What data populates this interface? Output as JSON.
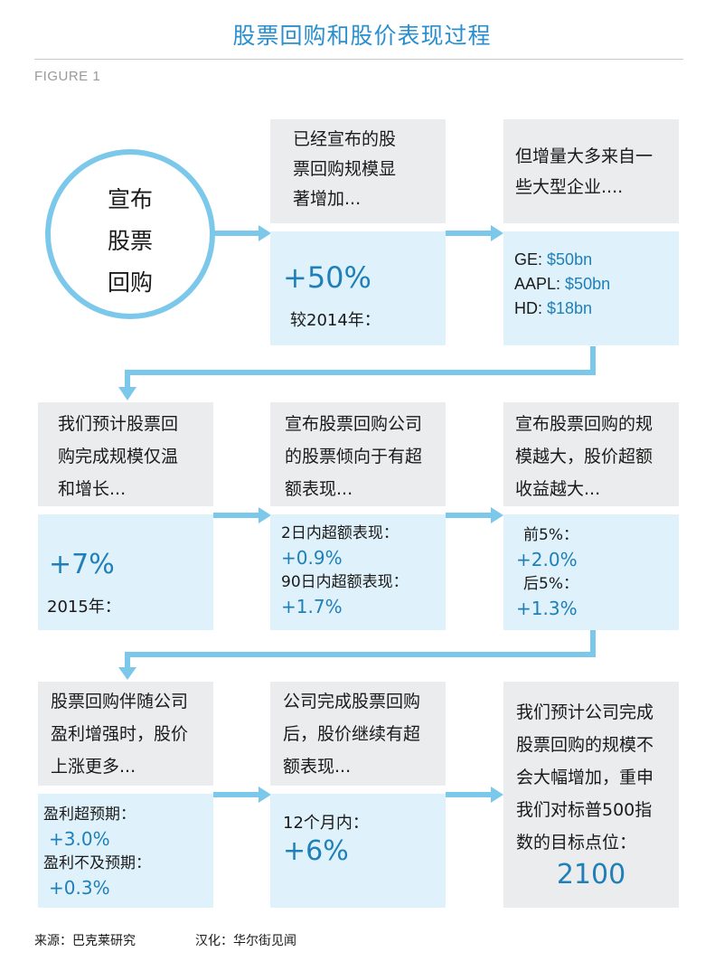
{
  "title": "股票回购和股价表现过程",
  "figure_label": "FIGURE 1",
  "start": {
    "lines": [
      "宣布",
      "股票",
      "回购"
    ]
  },
  "row1": {
    "col2": {
      "top_lines": [
        "已经宣布的股",
        "票回购规模显",
        "著增加..."
      ],
      "value": "+50%",
      "note": "较2014年："
    },
    "col3": {
      "top_lines": [
        "但增量大多来自一",
        "些大型企业...."
      ],
      "items": [
        {
          "label": "GE:",
          "value": "$50bn"
        },
        {
          "label": "AAPL:",
          "value": "$50bn"
        },
        {
          "label": "HD:",
          "value": "$18bn"
        }
      ]
    }
  },
  "row2": {
    "col1": {
      "top_lines": [
        "我们预计股票回",
        "购完成规模仅温",
        "和增长..."
      ],
      "value": "+7%",
      "note": "2015年："
    },
    "col2": {
      "top_lines": [
        "宣布股票回购公司",
        "的股票倾向于有超",
        "额表现..."
      ],
      "label1": "2日内超额表现：",
      "value1": "+0.9%",
      "label2": "90日内超额表现：",
      "value2": "+1.7%"
    },
    "col3": {
      "top_lines": [
        "宣布股票回购的规",
        "模越大，股价超额",
        "收益越大..."
      ],
      "label1": "前5%：",
      "value1": "+2.0%",
      "label2": "后5%：",
      "value2": "+1.3%"
    }
  },
  "row3": {
    "col1": {
      "top_lines": [
        "股票回购伴随公司",
        "盈利增强时，股价",
        "上涨更多..."
      ],
      "label1": "盈利超预期：",
      "value1": "+3.0%",
      "label2": "盈利不及预期：",
      "value2": "+0.3%"
    },
    "col2": {
      "top_lines": [
        "公司完成股票回购",
        "后，股价继续有超",
        "额表现..."
      ],
      "label1": "12个月内：",
      "value1": "+6%"
    },
    "col3": {
      "lines": [
        "我们预计公司完成",
        "股票回购的规模不",
        "会大幅增加，重申",
        "我们对标普500指",
        "数的目标点位："
      ],
      "value": "2100"
    }
  },
  "source": "来源：巴克莱研究",
  "translation": "汉化：华尔街见闻",
  "colors": {
    "accent_blue": "#2a8fcf",
    "arrow_blue": "#7bc8ea",
    "value_blue": "#1f7fb8",
    "gray_box": "#ebeced",
    "blue_box": "#dff1fa"
  }
}
